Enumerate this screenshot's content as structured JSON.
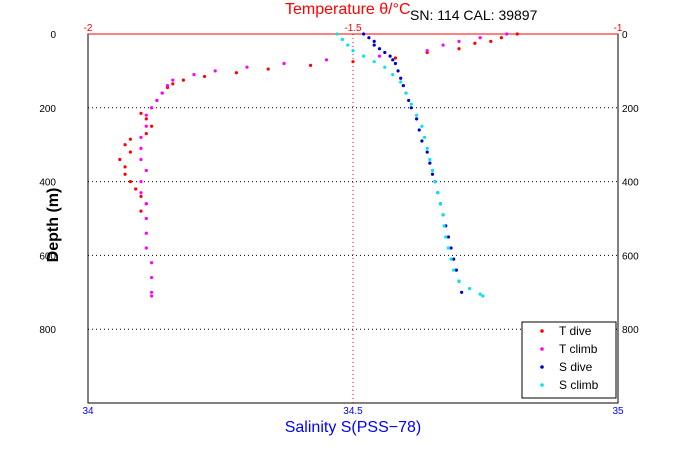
{
  "chart_data": {
    "type": "scatter",
    "title": "SN: 114  CAL: 39897",
    "top_axis": {
      "label": "Temperature θ/°C",
      "range": [
        -2,
        -1
      ],
      "ticks": [
        "-2",
        "-1.5",
        "-1"
      ],
      "color": "#ff0000"
    },
    "bottom_axis": {
      "label": "Salinity S(PSS−78)",
      "range": [
        34,
        35
      ],
      "ticks": [
        "34",
        "34.5",
        "35"
      ],
      "color": "#0000ff"
    },
    "y_axis": {
      "label": "Depth (m)",
      "range": [
        0,
        1000
      ],
      "inverted": true,
      "ticks": [
        "0",
        "200",
        "400",
        "600",
        "800"
      ]
    },
    "grid": "dotted",
    "legend_position": "bottom-right",
    "series": [
      {
        "name": "T dive",
        "axis": "top",
        "color": "#ff0000",
        "points": [
          [
            -1.19,
            0
          ],
          [
            -1.22,
            10
          ],
          [
            -1.24,
            20
          ],
          [
            -1.27,
            25
          ],
          [
            -1.3,
            40
          ],
          [
            -1.36,
            50
          ],
          [
            -1.42,
            65
          ],
          [
            -1.5,
            75
          ],
          [
            -1.58,
            85
          ],
          [
            -1.66,
            95
          ],
          [
            -1.72,
            105
          ],
          [
            -1.78,
            115
          ],
          [
            -1.82,
            125
          ],
          [
            -1.84,
            135
          ],
          [
            -1.85,
            145
          ],
          [
            -1.86,
            160
          ],
          [
            -1.87,
            180
          ],
          [
            -1.88,
            200
          ],
          [
            -1.9,
            215
          ],
          [
            -1.89,
            230
          ],
          [
            -1.88,
            250
          ],
          [
            -1.89,
            270
          ],
          [
            -1.92,
            285
          ],
          [
            -1.93,
            300
          ],
          [
            -1.92,
            320
          ],
          [
            -1.94,
            340
          ],
          [
            -1.93,
            360
          ],
          [
            -1.93,
            380
          ],
          [
            -1.92,
            400
          ],
          [
            -1.91,
            420
          ],
          [
            -1.9,
            440
          ],
          [
            -1.89,
            460
          ],
          [
            -1.9,
            480
          ]
        ]
      },
      {
        "name": "T climb",
        "axis": "top",
        "color": "#ff00ff",
        "points": [
          [
            -1.21,
            0
          ],
          [
            -1.26,
            10
          ],
          [
            -1.3,
            20
          ],
          [
            -1.33,
            30
          ],
          [
            -1.36,
            45
          ],
          [
            -1.45,
            60
          ],
          [
            -1.55,
            70
          ],
          [
            -1.63,
            80
          ],
          [
            -1.7,
            90
          ],
          [
            -1.76,
            100
          ],
          [
            -1.8,
            110
          ],
          [
            -1.84,
            125
          ],
          [
            -1.85,
            140
          ],
          [
            -1.86,
            160
          ],
          [
            -1.87,
            180
          ],
          [
            -1.88,
            200
          ],
          [
            -1.89,
            220
          ],
          [
            -1.89,
            250
          ],
          [
            -1.9,
            280
          ],
          [
            -1.9,
            310
          ],
          [
            -1.9,
            340
          ],
          [
            -1.89,
            370
          ],
          [
            -1.9,
            400
          ],
          [
            -1.9,
            430
          ],
          [
            -1.89,
            460
          ],
          [
            -1.89,
            500
          ],
          [
            -1.89,
            540
          ],
          [
            -1.89,
            580
          ],
          [
            -1.88,
            620
          ],
          [
            -1.88,
            660
          ],
          [
            -1.88,
            700
          ],
          [
            -1.88,
            710
          ]
        ]
      },
      {
        "name": "S dive",
        "axis": "bottom",
        "color": "#0000cc",
        "points": [
          [
            34.52,
            0
          ],
          [
            34.53,
            10
          ],
          [
            34.54,
            20
          ],
          [
            34.54,
            30
          ],
          [
            34.55,
            40
          ],
          [
            34.56,
            50
          ],
          [
            34.57,
            60
          ],
          [
            34.575,
            70
          ],
          [
            34.58,
            80
          ],
          [
            34.585,
            100
          ],
          [
            34.59,
            120
          ],
          [
            34.595,
            140
          ],
          [
            34.6,
            160
          ],
          [
            34.605,
            180
          ],
          [
            34.61,
            200
          ],
          [
            34.62,
            230
          ],
          [
            34.625,
            260
          ],
          [
            34.63,
            290
          ],
          [
            34.64,
            320
          ],
          [
            34.645,
            350
          ],
          [
            34.65,
            380
          ],
          [
            34.655,
            400
          ],
          [
            34.66,
            430
          ],
          [
            34.665,
            460
          ],
          [
            34.67,
            490
          ],
          [
            34.675,
            520
          ],
          [
            34.68,
            550
          ],
          [
            34.685,
            580
          ],
          [
            34.69,
            610
          ],
          [
            34.695,
            640
          ],
          [
            34.7,
            670
          ],
          [
            34.705,
            700
          ]
        ]
      },
      {
        "name": "S climb",
        "axis": "bottom",
        "color": "#00e5ee",
        "points": [
          [
            34.47,
            0
          ],
          [
            34.48,
            15
          ],
          [
            34.49,
            30
          ],
          [
            34.5,
            45
          ],
          [
            34.52,
            60
          ],
          [
            34.54,
            75
          ],
          [
            34.56,
            90
          ],
          [
            34.575,
            110
          ],
          [
            34.59,
            130
          ],
          [
            34.6,
            160
          ],
          [
            34.61,
            190
          ],
          [
            34.62,
            220
          ],
          [
            34.63,
            250
          ],
          [
            34.635,
            280
          ],
          [
            34.64,
            310
          ],
          [
            34.645,
            340
          ],
          [
            34.65,
            370
          ],
          [
            34.655,
            400
          ],
          [
            34.66,
            430
          ],
          [
            34.665,
            460
          ],
          [
            34.67,
            490
          ],
          [
            34.672,
            520
          ],
          [
            34.675,
            550
          ],
          [
            34.68,
            580
          ],
          [
            34.685,
            610
          ],
          [
            34.69,
            640
          ],
          [
            34.7,
            670
          ],
          [
            34.72,
            690
          ],
          [
            34.74,
            705
          ],
          [
            34.745,
            710
          ]
        ]
      }
    ]
  }
}
